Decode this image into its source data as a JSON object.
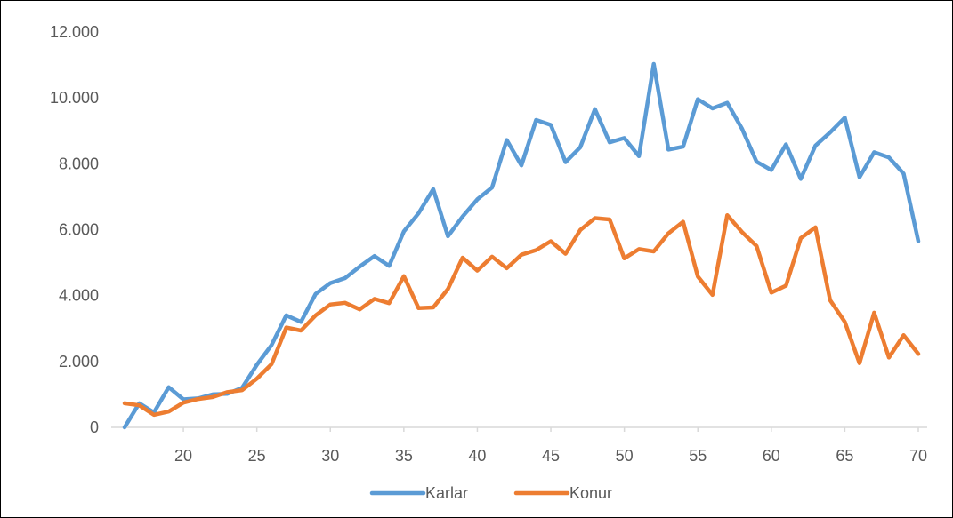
{
  "chart_data": {
    "type": "line",
    "title": "",
    "xlabel": "",
    "ylabel": "",
    "xlim": [
      16,
      70
    ],
    "ylim": [
      0,
      12000
    ],
    "x": [
      16,
      17,
      18,
      19,
      20,
      21,
      22,
      23,
      24,
      25,
      26,
      27,
      28,
      29,
      30,
      31,
      32,
      33,
      34,
      35,
      36,
      37,
      38,
      39,
      40,
      41,
      42,
      43,
      44,
      45,
      46,
      47,
      48,
      49,
      50,
      51,
      52,
      53,
      54,
      55,
      56,
      57,
      58,
      59,
      60,
      61,
      62,
      63,
      64,
      65,
      66,
      67,
      68,
      69,
      70
    ],
    "x_ticks": [
      20,
      25,
      30,
      35,
      40,
      45,
      50,
      55,
      60,
      65,
      70
    ],
    "x_tick_labels": [
      "20",
      "25",
      "30",
      "35",
      "40",
      "45",
      "50",
      "55",
      "60",
      "65",
      "70"
    ],
    "y_ticks": [
      0,
      2000,
      4000,
      6000,
      8000,
      10000,
      12000
    ],
    "y_tick_labels": [
      "0",
      "2.000",
      "4.000",
      "6.000",
      "8.000",
      "10.000",
      "12.000"
    ],
    "grid": false,
    "legend_position": "bottom",
    "series": [
      {
        "name": "Karlar",
        "color": "#5B9BD5",
        "values": [
          0,
          730,
          450,
          1220,
          850,
          880,
          1000,
          1020,
          1200,
          1900,
          2500,
          3400,
          3200,
          4050,
          4380,
          4530,
          4880,
          5200,
          4900,
          5950,
          6500,
          7230,
          5800,
          6400,
          6920,
          7280,
          8720,
          7950,
          9330,
          9180,
          8050,
          8500,
          9660,
          8650,
          8780,
          8230,
          11030,
          8430,
          8520,
          9960,
          9680,
          9850,
          9070,
          8060,
          7810,
          8590,
          7540,
          8550,
          8950,
          9400,
          7590,
          8350,
          8190,
          7700,
          5650
        ]
      },
      {
        "name": "Konur",
        "color": "#ED7D31",
        "values": [
          730,
          670,
          380,
          480,
          750,
          860,
          920,
          1070,
          1130,
          1480,
          1920,
          3030,
          2940,
          3400,
          3730,
          3780,
          3580,
          3900,
          3770,
          4590,
          3620,
          3640,
          4200,
          5150,
          4760,
          5180,
          4830,
          5240,
          5380,
          5650,
          5270,
          5990,
          6350,
          6310,
          5130,
          5410,
          5340,
          5890,
          6240,
          4580,
          4020,
          6440,
          5930,
          5500,
          4090,
          4300,
          5740,
          6070,
          3860,
          3200,
          1950,
          3480,
          2120,
          2800,
          2230
        ]
      }
    ]
  }
}
